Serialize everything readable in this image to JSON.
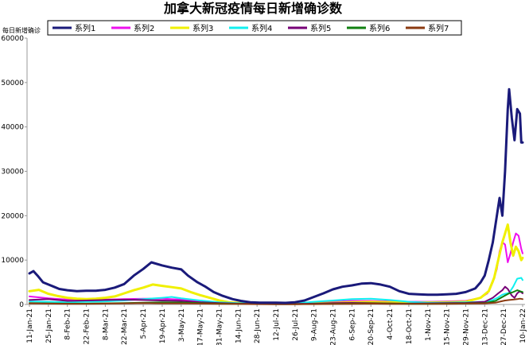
{
  "chart_data": {
    "type": "line",
    "title": "加拿大新冠疫情每日新增确诊数",
    "ylabel": "每日新增确诊",
    "xlabel": "",
    "ylim": [
      0,
      60000
    ],
    "yticks": [
      "0",
      "10000",
      "20000",
      "30000",
      "40000",
      "50000",
      "60000"
    ],
    "grid": false,
    "legend_position": "top",
    "x_start": "11-Jan-21",
    "x_tick_labels": [
      "11-Jan-21",
      "25-Jan-21",
      "8-Feb-21",
      "22-Feb-21",
      "8-Mar-21",
      "22-Mar-21",
      "5-Apr-21",
      "19-Apr-21",
      "3-May-21",
      "17-May-21",
      "31-May-21",
      "14-Jun-21",
      "28-Jun-21",
      "12-Jul-21",
      "26-Jul-21",
      "9-Aug-21",
      "23-Aug-21",
      "6-Sep-21",
      "20-Sep-21",
      "4-Oct-21",
      "18-Oct-21",
      "1-Nov-21",
      "15-Nov-21",
      "29-Nov-21",
      "13-Dec-21",
      "27-Dec-21",
      "10-Jan-22"
    ],
    "x_tick_day_offsets": [
      0,
      14,
      28,
      42,
      56,
      70,
      84,
      98,
      112,
      126,
      140,
      154,
      168,
      182,
      196,
      210,
      224,
      238,
      252,
      266,
      280,
      294,
      308,
      322,
      336,
      350,
      364
    ],
    "series": [
      {
        "name": "系列1",
        "color": "#1a1a7a",
        "width": 3,
        "points": [
          [
            0,
            7000
          ],
          [
            3,
            7500
          ],
          [
            6,
            6500
          ],
          [
            10,
            5000
          ],
          [
            14,
            4500
          ],
          [
            18,
            4000
          ],
          [
            22,
            3500
          ],
          [
            28,
            3200
          ],
          [
            35,
            3000
          ],
          [
            42,
            3100
          ],
          [
            49,
            3100
          ],
          [
            56,
            3300
          ],
          [
            63,
            3800
          ],
          [
            70,
            4600
          ],
          [
            77,
            6500
          ],
          [
            84,
            8000
          ],
          [
            90,
            9500
          ],
          [
            98,
            8800
          ],
          [
            105,
            8300
          ],
          [
            112,
            7900
          ],
          [
            117,
            6500
          ],
          [
            124,
            5000
          ],
          [
            130,
            4000
          ],
          [
            136,
            2800
          ],
          [
            142,
            2000
          ],
          [
            150,
            1200
          ],
          [
            156,
            800
          ],
          [
            163,
            500
          ],
          [
            170,
            400
          ],
          [
            182,
            400
          ],
          [
            189,
            350
          ],
          [
            196,
            500
          ],
          [
            203,
            900
          ],
          [
            210,
            1700
          ],
          [
            217,
            2500
          ],
          [
            224,
            3400
          ],
          [
            231,
            4000
          ],
          [
            238,
            4300
          ],
          [
            245,
            4700
          ],
          [
            252,
            4800
          ],
          [
            259,
            4500
          ],
          [
            266,
            4000
          ],
          [
            273,
            3000
          ],
          [
            280,
            2400
          ],
          [
            287,
            2300
          ],
          [
            294,
            2200
          ],
          [
            301,
            2200
          ],
          [
            308,
            2300
          ],
          [
            315,
            2400
          ],
          [
            322,
            2800
          ],
          [
            329,
            3600
          ],
          [
            333,
            5000
          ],
          [
            336,
            6500
          ],
          [
            339,
            10000
          ],
          [
            342,
            14000
          ],
          [
            345,
            20000
          ],
          [
            347,
            24000
          ],
          [
            349,
            20000
          ],
          [
            351,
            30000
          ],
          [
            353,
            44000
          ],
          [
            354,
            48500
          ],
          [
            356,
            42000
          ],
          [
            358,
            37000
          ],
          [
            360,
            44000
          ],
          [
            362,
            43000
          ],
          [
            363,
            36500
          ],
          [
            364,
            36500
          ]
        ]
      },
      {
        "name": "系列2",
        "color": "#ee10ee",
        "width": 2,
        "points": [
          [
            0,
            1800
          ],
          [
            14,
            1400
          ],
          [
            28,
            1100
          ],
          [
            42,
            1000
          ],
          [
            56,
            1100
          ],
          [
            70,
            1200
          ],
          [
            84,
            1300
          ],
          [
            98,
            1300
          ],
          [
            112,
            1100
          ],
          [
            126,
            800
          ],
          [
            140,
            400
          ],
          [
            154,
            250
          ],
          [
            168,
            200
          ],
          [
            182,
            150
          ],
          [
            196,
            200
          ],
          [
            210,
            350
          ],
          [
            224,
            600
          ],
          [
            238,
            800
          ],
          [
            252,
            800
          ],
          [
            266,
            700
          ],
          [
            280,
            600
          ],
          [
            294,
            600
          ],
          [
            308,
            700
          ],
          [
            322,
            800
          ],
          [
            333,
            1500
          ],
          [
            338,
            2500
          ],
          [
            342,
            5000
          ],
          [
            345,
            8000
          ],
          [
            347,
            12000
          ],
          [
            349,
            14000
          ],
          [
            351,
            13500
          ],
          [
            353,
            9500
          ],
          [
            355,
            11500
          ],
          [
            357,
            14000
          ],
          [
            359,
            16000
          ],
          [
            361,
            15500
          ],
          [
            363,
            12500
          ],
          [
            364,
            11500
          ]
        ]
      },
      {
        "name": "系列3",
        "color": "#f0f000",
        "width": 3,
        "points": [
          [
            0,
            3000
          ],
          [
            7,
            3300
          ],
          [
            14,
            2400
          ],
          [
            21,
            1900
          ],
          [
            28,
            1500
          ],
          [
            35,
            1300
          ],
          [
            42,
            1200
          ],
          [
            49,
            1300
          ],
          [
            56,
            1500
          ],
          [
            63,
            1800
          ],
          [
            70,
            2500
          ],
          [
            77,
            3200
          ],
          [
            84,
            3800
          ],
          [
            91,
            4500
          ],
          [
            98,
            4200
          ],
          [
            105,
            3900
          ],
          [
            112,
            3600
          ],
          [
            119,
            2800
          ],
          [
            126,
            2100
          ],
          [
            133,
            1500
          ],
          [
            140,
            900
          ],
          [
            147,
            500
          ],
          [
            154,
            350
          ],
          [
            168,
            250
          ],
          [
            182,
            200
          ],
          [
            196,
            200
          ],
          [
            210,
            250
          ],
          [
            224,
            350
          ],
          [
            238,
            500
          ],
          [
            252,
            550
          ],
          [
            266,
            500
          ],
          [
            280,
            400
          ],
          [
            294,
            450
          ],
          [
            308,
            500
          ],
          [
            322,
            600
          ],
          [
            333,
            1500
          ],
          [
            339,
            3000
          ],
          [
            343,
            6000
          ],
          [
            346,
            10000
          ],
          [
            349,
            14000
          ],
          [
            351,
            16000
          ],
          [
            353,
            18000
          ],
          [
            355,
            14000
          ],
          [
            357,
            11000
          ],
          [
            359,
            13000
          ],
          [
            361,
            12000
          ],
          [
            363,
            10000
          ],
          [
            364,
            10500
          ]
        ]
      },
      {
        "name": "系列4",
        "color": "#10f0f0",
        "width": 2,
        "points": [
          [
            0,
            700
          ],
          [
            14,
            600
          ],
          [
            28,
            500
          ],
          [
            42,
            600
          ],
          [
            56,
            700
          ],
          [
            70,
            900
          ],
          [
            84,
            1200
          ],
          [
            98,
            1500
          ],
          [
            105,
            1700
          ],
          [
            112,
            1400
          ],
          [
            126,
            900
          ],
          [
            140,
            500
          ],
          [
            154,
            300
          ],
          [
            168,
            250
          ],
          [
            182,
            200
          ],
          [
            196,
            250
          ],
          [
            210,
            600
          ],
          [
            224,
            900
          ],
          [
            238,
            1200
          ],
          [
            252,
            1300
          ],
          [
            266,
            1000
          ],
          [
            280,
            600
          ],
          [
            294,
            400
          ],
          [
            308,
            400
          ],
          [
            322,
            500
          ],
          [
            336,
            600
          ],
          [
            342,
            1000
          ],
          [
            346,
            1600
          ],
          [
            349,
            2200
          ],
          [
            351,
            2400
          ],
          [
            354,
            2600
          ],
          [
            357,
            4000
          ],
          [
            360,
            5800
          ],
          [
            363,
            6000
          ],
          [
            364,
            5500
          ]
        ]
      },
      {
        "name": "系列5",
        "color": "#770077",
        "width": 2,
        "points": [
          [
            0,
            1000
          ],
          [
            14,
            1200
          ],
          [
            28,
            800
          ],
          [
            42,
            900
          ],
          [
            56,
            1000
          ],
          [
            70,
            1100
          ],
          [
            84,
            1000
          ],
          [
            98,
            900
          ],
          [
            112,
            800
          ],
          [
            126,
            500
          ],
          [
            140,
            300
          ],
          [
            154,
            200
          ],
          [
            168,
            150
          ],
          [
            182,
            150
          ],
          [
            196,
            150
          ],
          [
            210,
            200
          ],
          [
            224,
            300
          ],
          [
            238,
            350
          ],
          [
            252,
            300
          ],
          [
            266,
            250
          ],
          [
            280,
            200
          ],
          [
            294,
            250
          ],
          [
            308,
            300
          ],
          [
            322,
            350
          ],
          [
            336,
            600
          ],
          [
            342,
            1500
          ],
          [
            346,
            2500
          ],
          [
            349,
            3200
          ],
          [
            351,
            4000
          ],
          [
            353,
            3500
          ],
          [
            356,
            2000
          ],
          [
            358,
            1500
          ],
          [
            360,
            2500
          ],
          [
            362,
            3000
          ],
          [
            364,
            2500
          ]
        ]
      },
      {
        "name": "系列6",
        "color": "#108010",
        "width": 2,
        "points": [
          [
            0,
            300
          ],
          [
            14,
            250
          ],
          [
            28,
            200
          ],
          [
            42,
            200
          ],
          [
            56,
            250
          ],
          [
            70,
            300
          ],
          [
            84,
            400
          ],
          [
            98,
            500
          ],
          [
            112,
            450
          ],
          [
            126,
            300
          ],
          [
            140,
            200
          ],
          [
            154,
            150
          ],
          [
            168,
            100
          ],
          [
            182,
            80
          ],
          [
            196,
            80
          ],
          [
            210,
            100
          ],
          [
            224,
            150
          ],
          [
            238,
            200
          ],
          [
            252,
            250
          ],
          [
            266,
            200
          ],
          [
            280,
            150
          ],
          [
            294,
            150
          ],
          [
            308,
            200
          ],
          [
            322,
            250
          ],
          [
            336,
            300
          ],
          [
            344,
            800
          ],
          [
            348,
            1500
          ],
          [
            351,
            2000
          ],
          [
            354,
            2500
          ],
          [
            357,
            2800
          ],
          [
            360,
            3200
          ],
          [
            362,
            3000
          ],
          [
            364,
            2800
          ]
        ]
      },
      {
        "name": "系列7",
        "color": "#8b3a10",
        "width": 2,
        "points": [
          [
            0,
            250
          ],
          [
            14,
            200
          ],
          [
            28,
            150
          ],
          [
            42,
            150
          ],
          [
            56,
            200
          ],
          [
            70,
            250
          ],
          [
            84,
            300
          ],
          [
            98,
            250
          ],
          [
            112,
            250
          ],
          [
            126,
            200
          ],
          [
            140,
            150
          ],
          [
            154,
            100
          ],
          [
            168,
            80
          ],
          [
            182,
            60
          ],
          [
            196,
            60
          ],
          [
            210,
            80
          ],
          [
            224,
            100
          ],
          [
            238,
            150
          ],
          [
            252,
            200
          ],
          [
            266,
            150
          ],
          [
            280,
            120
          ],
          [
            294,
            120
          ],
          [
            308,
            150
          ],
          [
            322,
            200
          ],
          [
            336,
            250
          ],
          [
            344,
            400
          ],
          [
            348,
            700
          ],
          [
            351,
            900
          ],
          [
            354,
            1000
          ],
          [
            357,
            1100
          ],
          [
            360,
            1200
          ],
          [
            362,
            1300
          ],
          [
            364,
            1200
          ]
        ]
      }
    ]
  }
}
